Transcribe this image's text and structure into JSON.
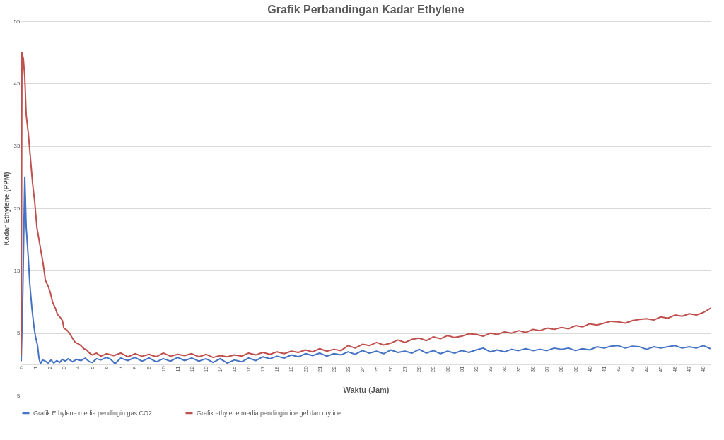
{
  "chart_data": {
    "type": "line",
    "title": "Grafik Perbandingan Kadar Ethylene",
    "xlabel": "Waktu (Jam)",
    "ylabel": "Kadar Ethylene (PPM)",
    "xlim": [
      0,
      48.5
    ],
    "xticks": [
      0,
      1,
      2,
      3,
      4,
      5,
      6,
      7,
      8,
      9,
      10,
      11,
      12,
      13,
      14,
      15,
      16,
      17,
      18,
      19,
      20,
      21,
      22,
      23,
      24,
      25,
      26,
      27,
      28,
      29,
      30,
      31,
      32,
      33,
      34,
      35,
      36,
      37,
      38,
      39,
      40,
      41,
      42,
      43,
      44,
      45,
      46,
      47,
      48
    ],
    "ylim": [
      -5,
      55
    ],
    "yticks": [
      -5,
      5,
      15,
      25,
      35,
      45,
      55
    ],
    "grid": "y",
    "legend": "bottom",
    "line_style": "solid",
    "series": [
      {
        "name": "Grafik Ethylene media pendingin gas CO2",
        "color": "#4472c4",
        "x": [
          0,
          0.1,
          0.25,
          0.35,
          0.5,
          0.6,
          0.75,
          0.9,
          1.0,
          1.15,
          1.25,
          1.35,
          1.5,
          1.7,
          1.9,
          2.1,
          2.3,
          2.5,
          2.7,
          2.9,
          3.1,
          3.3,
          3.6,
          3.9,
          4.2,
          4.5,
          4.8,
          5.0,
          5.3,
          5.6,
          6.0,
          6.3,
          6.6,
          7.0,
          7.5,
          8,
          8.5,
          9,
          9.5,
          10,
          10.5,
          11,
          11.5,
          12,
          12.5,
          13,
          13.5,
          14,
          14.5,
          15,
          15.5,
          16,
          16.5,
          17,
          17.5,
          18,
          18.5,
          19,
          19.5,
          20,
          20.5,
          21,
          21.5,
          22,
          22.5,
          23,
          23.5,
          24,
          24.5,
          25,
          25.5,
          26,
          26.5,
          27,
          27.5,
          28,
          28.5,
          29,
          29.5,
          30,
          30.5,
          31,
          31.5,
          32,
          32.5,
          33,
          33.5,
          34,
          34.5,
          35,
          35.5,
          36,
          36.5,
          37,
          37.5,
          38,
          38.5,
          39,
          39.5,
          40,
          40.5,
          41,
          41.5,
          42,
          42.5,
          43,
          43.5,
          44,
          44.5,
          45,
          45.5,
          46,
          46.5,
          47,
          47.5,
          48,
          48.5
        ],
        "values": [
          0.5,
          10,
          30,
          22,
          17,
          13,
          9,
          6,
          4.5,
          3,
          1,
          0.1,
          0.7,
          0.5,
          0.2,
          0.7,
          0.2,
          0.6,
          0.3,
          0.8,
          0.5,
          0.9,
          0.4,
          0.8,
          0.6,
          1.0,
          0.4,
          0.3,
          0.9,
          0.7,
          1.1,
          0.8,
          0.1,
          1.0,
          0.6,
          1.1,
          0.5,
          1.0,
          0.4,
          0.9,
          0.5,
          1.1,
          0.6,
          1.0,
          0.5,
          0.9,
          0.3,
          0.9,
          0.2,
          0.7,
          0.4,
          1.0,
          0.6,
          1.2,
          0.9,
          1.3,
          1.0,
          1.5,
          1.2,
          1.7,
          1.4,
          1.8,
          1.3,
          1.7,
          1.5,
          2.0,
          1.6,
          2.2,
          1.8,
          2.1,
          1.7,
          2.3,
          1.9,
          2.1,
          1.8,
          2.4,
          1.8,
          2.2,
          1.7,
          2.1,
          1.8,
          2.2,
          1.9,
          2.3,
          2.6,
          2.0,
          2.3,
          2.0,
          2.4,
          2.2,
          2.5,
          2.2,
          2.4,
          2.2,
          2.6,
          2.4,
          2.6,
          2.2,
          2.5,
          2.3,
          2.8,
          2.6,
          2.9,
          3.0,
          2.6,
          2.9,
          2.8,
          2.4,
          2.8,
          2.6,
          2.8,
          3.0,
          2.6,
          2.8,
          2.6,
          3.0,
          2.5
        ]
      },
      {
        "name": "Grafik ethylene media pendingin ice gel dan dry ice",
        "color": "#c0504d",
        "x": [
          0,
          0.05,
          0.15,
          0.25,
          0.35,
          0.5,
          0.65,
          0.8,
          0.95,
          1.1,
          1.25,
          1.4,
          1.55,
          1.7,
          1.9,
          2.05,
          2.2,
          2.4,
          2.55,
          2.75,
          2.9,
          3.0,
          3.2,
          3.4,
          3.6,
          3.8,
          4.0,
          4.2,
          4.4,
          4.6,
          4.8,
          5,
          5.3,
          5.6,
          6,
          6.5,
          7,
          7.5,
          8,
          8.5,
          9,
          9.5,
          10,
          10.5,
          11,
          11.5,
          12,
          12.5,
          13,
          13.5,
          14,
          14.5,
          15,
          15.5,
          16,
          16.5,
          17,
          17.5,
          18,
          18.5,
          19,
          19.5,
          20,
          20.5,
          21,
          21.5,
          22,
          22.5,
          23,
          23.5,
          24,
          24.5,
          25,
          25.5,
          26,
          26.5,
          27,
          27.5,
          28,
          28.5,
          29,
          29.5,
          30,
          30.5,
          31,
          31.5,
          32,
          32.5,
          33,
          33.5,
          34,
          34.5,
          35,
          35.5,
          36,
          36.5,
          37,
          37.5,
          38,
          38.5,
          39,
          39.5,
          40,
          40.5,
          41,
          41.5,
          42,
          42.5,
          43,
          43.5,
          44,
          44.5,
          45,
          45.5,
          46,
          46.5,
          47,
          47.5,
          48,
          48.5
        ],
        "values": [
          1.4,
          50,
          49,
          46,
          40,
          37,
          33,
          29,
          26,
          22,
          20,
          18,
          16,
          13.5,
          12.5,
          11.5,
          10,
          9,
          8,
          7.5,
          7,
          5.8,
          5.5,
          5,
          4.2,
          3.5,
          3.3,
          3,
          2.5,
          2.3,
          1.8,
          1.5,
          1.8,
          1.3,
          1.7,
          1.4,
          1.8,
          1.2,
          1.7,
          1.3,
          1.6,
          1.2,
          1.8,
          1.3,
          1.6,
          1.4,
          1.7,
          1.2,
          1.6,
          1.1,
          1.4,
          1.2,
          1.5,
          1.3,
          1.8,
          1.5,
          1.9,
          1.6,
          2.0,
          1.7,
          2.1,
          1.9,
          2.3,
          2.0,
          2.5,
          2.1,
          2.4,
          2.2,
          3.0,
          2.6,
          3.2,
          3.0,
          3.5,
          3.1,
          3.4,
          3.9,
          3.5,
          4.0,
          4.2,
          3.8,
          4.4,
          4.1,
          4.6,
          4.3,
          4.5,
          4.9,
          4.8,
          4.5,
          5.0,
          4.8,
          5.2,
          5.0,
          5.4,
          5.1,
          5.6,
          5.4,
          5.8,
          5.6,
          5.9,
          5.7,
          6.2,
          6.0,
          6.5,
          6.3,
          6.6,
          6.9,
          6.8,
          6.6,
          7.0,
          7.2,
          7.3,
          7.1,
          7.6,
          7.4,
          7.9,
          7.7,
          8.1,
          7.9,
          8.3,
          9.0
        ]
      }
    ]
  }
}
